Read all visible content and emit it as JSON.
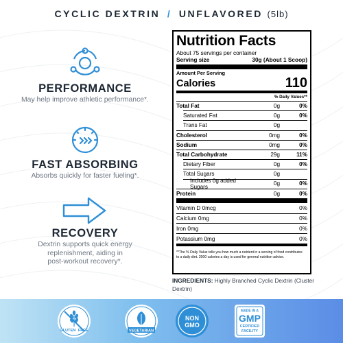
{
  "header": {
    "product": "CYCLIC DEXTRIN",
    "separator": "/",
    "flavor": "UNFLAVORED",
    "size": "(5lb)"
  },
  "features": [
    {
      "icon": "molecule-icon",
      "title": "PERFORMANCE",
      "desc_lines": [
        "May help improve athletic performance*."
      ]
    },
    {
      "icon": "speedometer-icon",
      "title": "FAST ABSORBING",
      "desc_lines": [
        "Absorbs quickly for faster fueling*."
      ]
    },
    {
      "icon": "arrow-icon",
      "title": "RECOVERY",
      "desc_lines": [
        "Dextrin supports quick energy",
        "replenishment, aiding in",
        "post-workout recovery*."
      ]
    }
  ],
  "nutrition": {
    "title": "Nutrition Facts",
    "servings_per_container": "About 75 servings per container",
    "serving_size_label": "Serving size",
    "serving_size_value": "30g (About 1 Scoop)",
    "amount_per_serving": "Amount Per Serving",
    "calories_label": "Calories",
    "calories_value": "110",
    "dv_header": "% Daily Values**",
    "rows": [
      {
        "name": "Total Fat",
        "amount": "0g",
        "dv": "0%"
      },
      {
        "name": "Saturated Fat",
        "amount": "0g",
        "dv": "0%"
      },
      {
        "name": "Trans Fat",
        "amount": "0g",
        "dv": ""
      },
      {
        "name": "Cholesterol",
        "amount": "0mg",
        "dv": "0%"
      },
      {
        "name": "Sodium",
        "amount": "0mg",
        "dv": "0%"
      },
      {
        "name": "Total Carbohydrate",
        "amount": "29g",
        "dv": "11%"
      },
      {
        "name": "Dietary Fiber",
        "amount": "0g",
        "dv": "0%"
      },
      {
        "name": "Total Sugars",
        "amount": "0g",
        "dv": ""
      },
      {
        "name": "Includes 0g added Sugars",
        "amount": "0g",
        "dv": "0%"
      },
      {
        "name": "Protein",
        "amount": "0g",
        "dv": "0%"
      }
    ],
    "vitamins": [
      {
        "name": "Vitamin D 0mcg",
        "dv": "0%"
      },
      {
        "name": "Calcium 0mg",
        "dv": "0%"
      },
      {
        "name": "Iron 0mg",
        "dv": "0%"
      },
      {
        "name": "Potassium 0mg",
        "dv": "0%"
      }
    ],
    "footnote": "**The % Daily Value tells you how much a nutrient in a serving of food contributes to a daily diet. 2000 calories a day is used for general nutrition advice."
  },
  "ingredients": {
    "label": "INGREDIENTS:",
    "text": "Highly Branched Cyclic Dextrin (Cluster Dextrin)"
  },
  "badges": [
    {
      "icon": "gluten-free-badge-icon",
      "lines": [
        "GLUTEN",
        "FREE"
      ]
    },
    {
      "icon": "vegetarian-badge-icon",
      "lines": [
        "VEGETARIAN"
      ]
    },
    {
      "icon": "non-gmo-badge-icon",
      "lines": [
        "NON",
        "GMO"
      ]
    },
    {
      "icon": "gmp-badge-icon",
      "lines": [
        "MADE IN A",
        "GMP",
        "CERTIFIED",
        "FACILITY"
      ]
    }
  ],
  "colors": {
    "accent_blue": "#2f8fd6",
    "text_dark": "#1c2733",
    "text_muted": "#6e7782",
    "band_start": "#bfe3f5",
    "band_end": "#5b8de6"
  }
}
